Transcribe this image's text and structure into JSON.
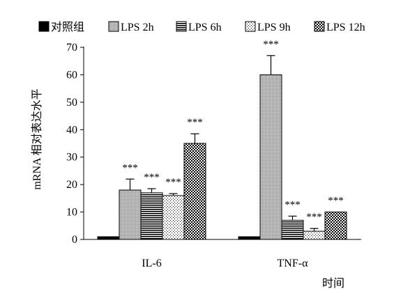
{
  "chart_data": {
    "type": "bar",
    "categories": [
      "IL-6",
      "TNF-α"
    ],
    "series": [
      {
        "name": "对照组",
        "pattern": "solid",
        "values": [
          1,
          1
        ],
        "errors": [
          0,
          0
        ],
        "annotations": [
          "",
          ""
        ]
      },
      {
        "name": "LPS 2h",
        "pattern": "dots-gray",
        "values": [
          18,
          60
        ],
        "errors": [
          4,
          7
        ],
        "annotations": [
          "***",
          "***"
        ]
      },
      {
        "name": "LPS 6h",
        "pattern": "hlines",
        "values": [
          17,
          7
        ],
        "errors": [
          1.5,
          1.5
        ],
        "annotations": [
          "***",
          "***"
        ]
      },
      {
        "name": "LPS 9h",
        "pattern": "sparse-dots",
        "values": [
          16,
          3
        ],
        "errors": [
          0.7,
          1
        ],
        "annotations": [
          "***",
          "***"
        ]
      },
      {
        "name": "LPS 12h",
        "pattern": "checker",
        "values": [
          35,
          10
        ],
        "errors": [
          3.5,
          0
        ],
        "annotations": [
          "***",
          "***"
        ]
      }
    ],
    "ylabel": "mRNA 相对表达水平",
    "xlabel": "时间",
    "ylim": [
      0,
      70
    ],
    "yticks": [
      "0",
      "10",
      "20",
      "30",
      "40",
      "50",
      "60",
      "70"
    ],
    "legend_position": "top",
    "grid": false
  }
}
